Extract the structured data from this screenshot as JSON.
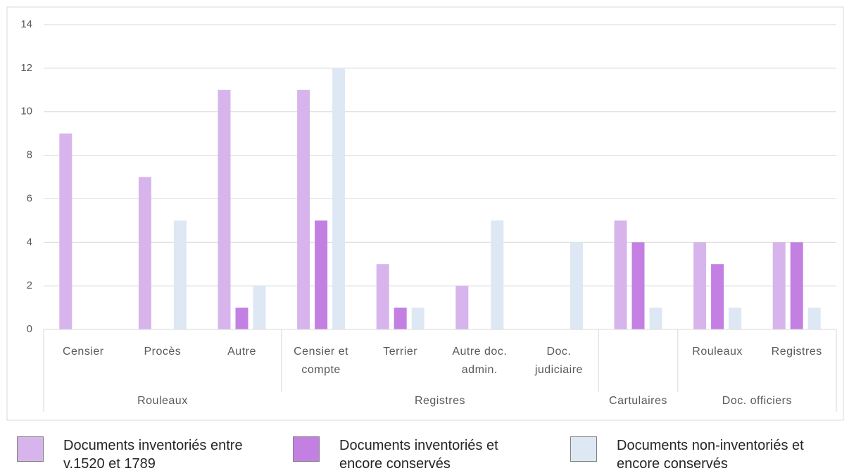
{
  "chart_data": {
    "type": "bar",
    "groups": [
      {
        "name": "Rouleaux",
        "categories": [
          "Censier",
          "Procès",
          "Autre"
        ]
      },
      {
        "name": "Registres",
        "categories": [
          "Censier et compte",
          "Terrier",
          "Autre doc. admin.",
          "Doc. judiciaire"
        ]
      },
      {
        "name": "Cartulaires",
        "categories": [
          null
        ]
      },
      {
        "name": "Doc. officiers",
        "categories": [
          "Rouleaux",
          "Registres"
        ]
      }
    ],
    "series": [
      {
        "name": "Documents inventoriés entre v.1520 et 1789",
        "color": "#d7b5ec",
        "values": [
          9,
          7,
          11,
          11,
          3,
          2,
          0,
          5,
          4,
          4
        ]
      },
      {
        "name": "Documents inventoriés et encore conservés",
        "color": "#c380e2",
        "values": [
          0,
          0,
          1,
          5,
          1,
          0,
          0,
          4,
          3,
          4
        ]
      },
      {
        "name": "Documents non-inventoriés et encore conservés",
        "color": "#dde8f4",
        "values": [
          0,
          5,
          2,
          12,
          1,
          5,
          4,
          1,
          1,
          1
        ]
      }
    ],
    "ylim": [
      0,
      14
    ],
    "yticks": [
      0,
      2,
      4,
      6,
      8,
      10,
      12,
      14
    ],
    "grid": true,
    "legend": "bottom"
  }
}
